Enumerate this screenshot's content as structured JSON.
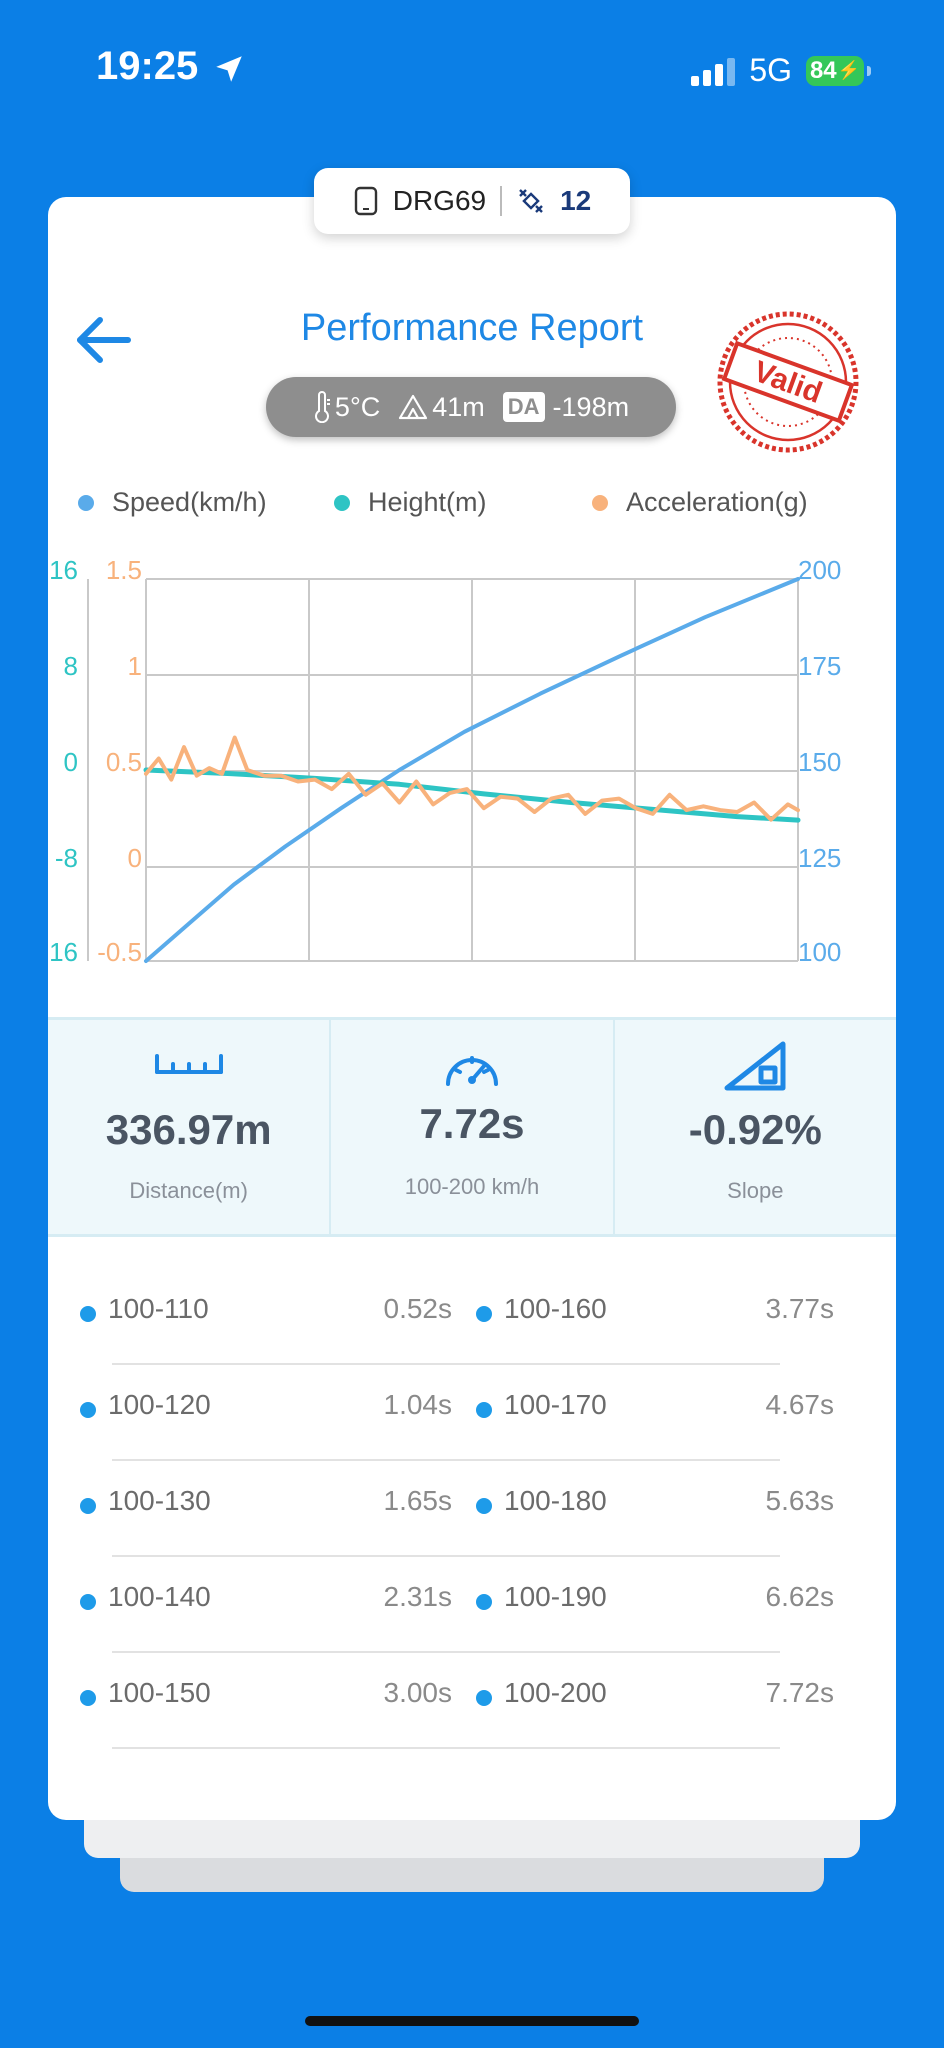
{
  "status": {
    "time": "19:25",
    "network": "5G",
    "battery": "84"
  },
  "device": {
    "name": "DRG69",
    "satellites": "12"
  },
  "header": {
    "title": "Performance Report",
    "stamp_text": "Valid"
  },
  "conditions": {
    "temperature": "5°C",
    "altitude": "41m",
    "da_label": "DA",
    "density_altitude": "-198m"
  },
  "legend": [
    {
      "label": "Speed(km/h)",
      "color": "#5AABEA"
    },
    {
      "label": "Height(m)",
      "color": "#2EC4C4"
    },
    {
      "label": "Acceleration(g)",
      "color": "#F8B27C"
    }
  ],
  "chart_data": {
    "type": "line",
    "grid": true,
    "axes": {
      "height": {
        "ticks": [
          "16",
          "8",
          "0",
          "-8",
          "-16"
        ],
        "ylim": [
          -16,
          16
        ],
        "color": "#2EC4C4"
      },
      "acceleration": {
        "ticks": [
          "1.5",
          "1",
          "0.5",
          "0",
          "-0.5"
        ],
        "ylim": [
          -0.5,
          1.5
        ],
        "color": "#F8B27C"
      },
      "speed": {
        "ticks": [
          "200",
          "175",
          "150",
          "125",
          "100"
        ],
        "ylim": [
          100,
          200
        ],
        "color": "#5AABEA"
      }
    },
    "series": [
      {
        "name": "Speed(km/h)",
        "axis": "speed",
        "color": "#5AABEA",
        "x": [
          0,
          0.52,
          1.04,
          1.65,
          2.31,
          3.0,
          3.77,
          4.67,
          5.63,
          6.62,
          7.72
        ],
        "y": [
          100,
          110,
          120,
          130,
          140,
          150,
          160,
          170,
          180,
          190,
          200
        ]
      },
      {
        "name": "Height(m)",
        "axis": "height",
        "color": "#2EC4C4",
        "x": [
          0,
          1,
          2,
          3,
          4,
          5,
          6,
          7,
          7.72
        ],
        "y": [
          0,
          -0.3,
          -0.7,
          -1.2,
          -2.0,
          -2.7,
          -3.3,
          -3.9,
          -4.2
        ]
      },
      {
        "name": "Acceleration(g)",
        "axis": "acceleration",
        "color": "#F8B27C",
        "x": [
          0,
          0.15,
          0.3,
          0.45,
          0.6,
          0.75,
          0.9,
          1.05,
          1.2,
          1.4,
          1.6,
          1.8,
          2.0,
          2.2,
          2.4,
          2.6,
          2.8,
          3.0,
          3.2,
          3.4,
          3.6,
          3.8,
          4.0,
          4.2,
          4.4,
          4.6,
          4.8,
          5.0,
          5.2,
          5.4,
          5.6,
          5.8,
          6.0,
          6.2,
          6.4,
          6.6,
          6.8,
          7.0,
          7.2,
          7.4,
          7.6,
          7.72
        ],
        "y": [
          0.48,
          0.56,
          0.45,
          0.62,
          0.47,
          0.51,
          0.48,
          0.67,
          0.5,
          0.47,
          0.47,
          0.44,
          0.45,
          0.4,
          0.48,
          0.37,
          0.43,
          0.33,
          0.44,
          0.32,
          0.38,
          0.4,
          0.3,
          0.36,
          0.35,
          0.28,
          0.35,
          0.37,
          0.27,
          0.34,
          0.35,
          0.3,
          0.27,
          0.37,
          0.29,
          0.31,
          0.29,
          0.28,
          0.33,
          0.24,
          0.32,
          0.29
        ]
      }
    ]
  },
  "stats": [
    {
      "icon": "ruler-icon",
      "value": "336.97m",
      "label": "Distance(m)"
    },
    {
      "icon": "speedometer-icon",
      "value": "7.72s",
      "label": "100-200 km/h"
    },
    {
      "icon": "slope-icon",
      "value": "-0.92%",
      "label": "Slope"
    }
  ],
  "splits": [
    {
      "left": {
        "range": "100-110",
        "time": "0.52s"
      },
      "right": {
        "range": "100-160",
        "time": "3.77s"
      }
    },
    {
      "left": {
        "range": "100-120",
        "time": "1.04s"
      },
      "right": {
        "range": "100-170",
        "time": "4.67s"
      }
    },
    {
      "left": {
        "range": "100-130",
        "time": "1.65s"
      },
      "right": {
        "range": "100-180",
        "time": "5.63s"
      }
    },
    {
      "left": {
        "range": "100-140",
        "time": "2.31s"
      },
      "right": {
        "range": "100-190",
        "time": "6.62s"
      }
    },
    {
      "left": {
        "range": "100-150",
        "time": "3.00s"
      },
      "right": {
        "range": "100-200",
        "time": "7.72s"
      }
    }
  ]
}
